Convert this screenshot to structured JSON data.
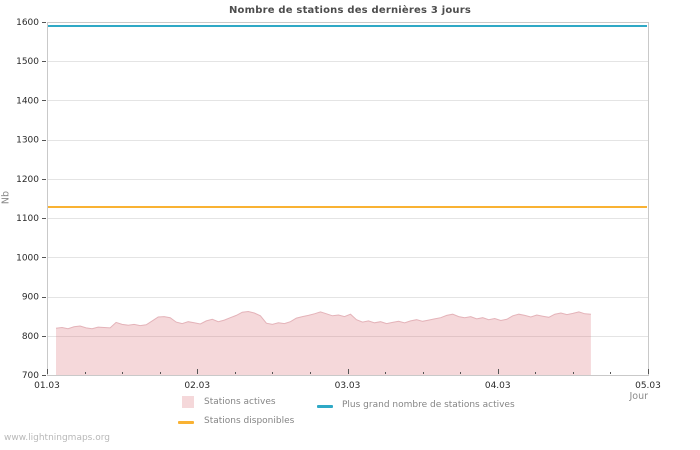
{
  "watermark": "www.lightningmaps.org",
  "chart_data": {
    "type": "area",
    "title": "Nombre de stations des dernières 3 jours",
    "xlabel": "Jour",
    "ylabel": "Nb",
    "ylim": [
      700,
      1600
    ],
    "xlim": [
      1,
      5
    ],
    "y_ticks": [
      700,
      800,
      900,
      1000,
      1100,
      1200,
      1300,
      1400,
      1500,
      1600
    ],
    "x_ticks": [
      {
        "value": 1,
        "label": "01.03"
      },
      {
        "value": 2,
        "label": "02.03"
      },
      {
        "value": 3,
        "label": "03.03"
      },
      {
        "value": 4,
        "label": "04.03"
      },
      {
        "value": 5,
        "label": "05.03"
      }
    ],
    "x_minor_tick_step": 0.25,
    "grid": "horizontal",
    "legend_position": "bottom",
    "series": [
      {
        "name": "Stations actives",
        "type": "area",
        "color": "#d7636b",
        "fill_opacity": 0.25,
        "edge_color": "#e4b3b9",
        "x_start": 1.06,
        "x_step": 0.04,
        "values": [
          819,
          821,
          818,
          823,
          825,
          820,
          818,
          822,
          821,
          820,
          834,
          829,
          827,
          829,
          826,
          828,
          838,
          848,
          849,
          846,
          835,
          831,
          836,
          833,
          830,
          838,
          842,
          836,
          840,
          846,
          852,
          860,
          862,
          858,
          851,
          832,
          829,
          833,
          831,
          836,
          845,
          849,
          852,
          856,
          861,
          856,
          851,
          853,
          849,
          855,
          841,
          835,
          838,
          833,
          836,
          831,
          834,
          837,
          833,
          838,
          841,
          837,
          840,
          843,
          846,
          852,
          855,
          849,
          846,
          849,
          843,
          846,
          841,
          844,
          839,
          842,
          851,
          855,
          852,
          848,
          853,
          850,
          847,
          855,
          858,
          854,
          857,
          861,
          856,
          855
        ]
      },
      {
        "name": "Plus grand nombre de stations actives",
        "type": "hline",
        "color": "#2fa9c6",
        "value": 1590
      },
      {
        "name": "Stations disponibles",
        "type": "hline",
        "color": "#f9b233",
        "value": 1128
      }
    ],
    "style": {
      "grid_color": "#e4e4e4",
      "border_color": "#c9c9c9",
      "tick_color": "#555555",
      "tick_label_color": "#2a2a2a"
    }
  }
}
